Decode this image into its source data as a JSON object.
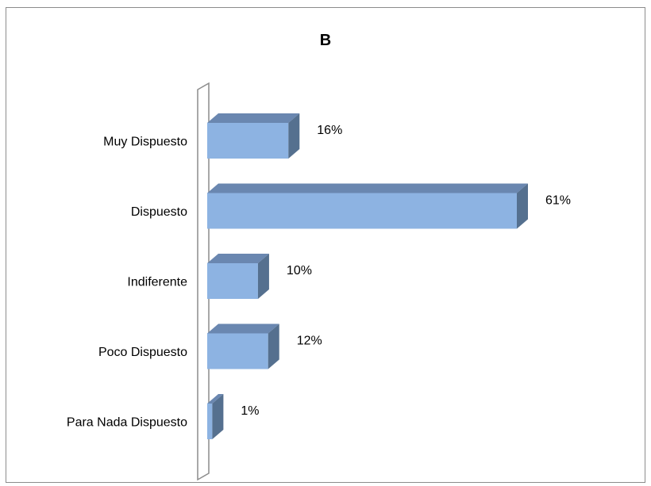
{
  "chart_data": {
    "type": "bar",
    "orientation": "horizontal",
    "title": "B",
    "xlabel": "",
    "ylabel": "",
    "categories": [
      "Muy Dispuesto",
      "Dispuesto",
      "Indiferente",
      "Poco Dispuesto",
      "Para Nada Dispuesto"
    ],
    "values": [
      16,
      61,
      10,
      12,
      1
    ],
    "value_labels": [
      "16%",
      "61%",
      "10%",
      "12%",
      "1%"
    ],
    "value_unit": "%",
    "style": "3d",
    "grid": false,
    "legend": "none",
    "colors": {
      "bar_front": "#8db3e2",
      "bar_top": "#6a87b0",
      "bar_side": "#55708f",
      "axis_wall": "#8c8c8c"
    }
  }
}
